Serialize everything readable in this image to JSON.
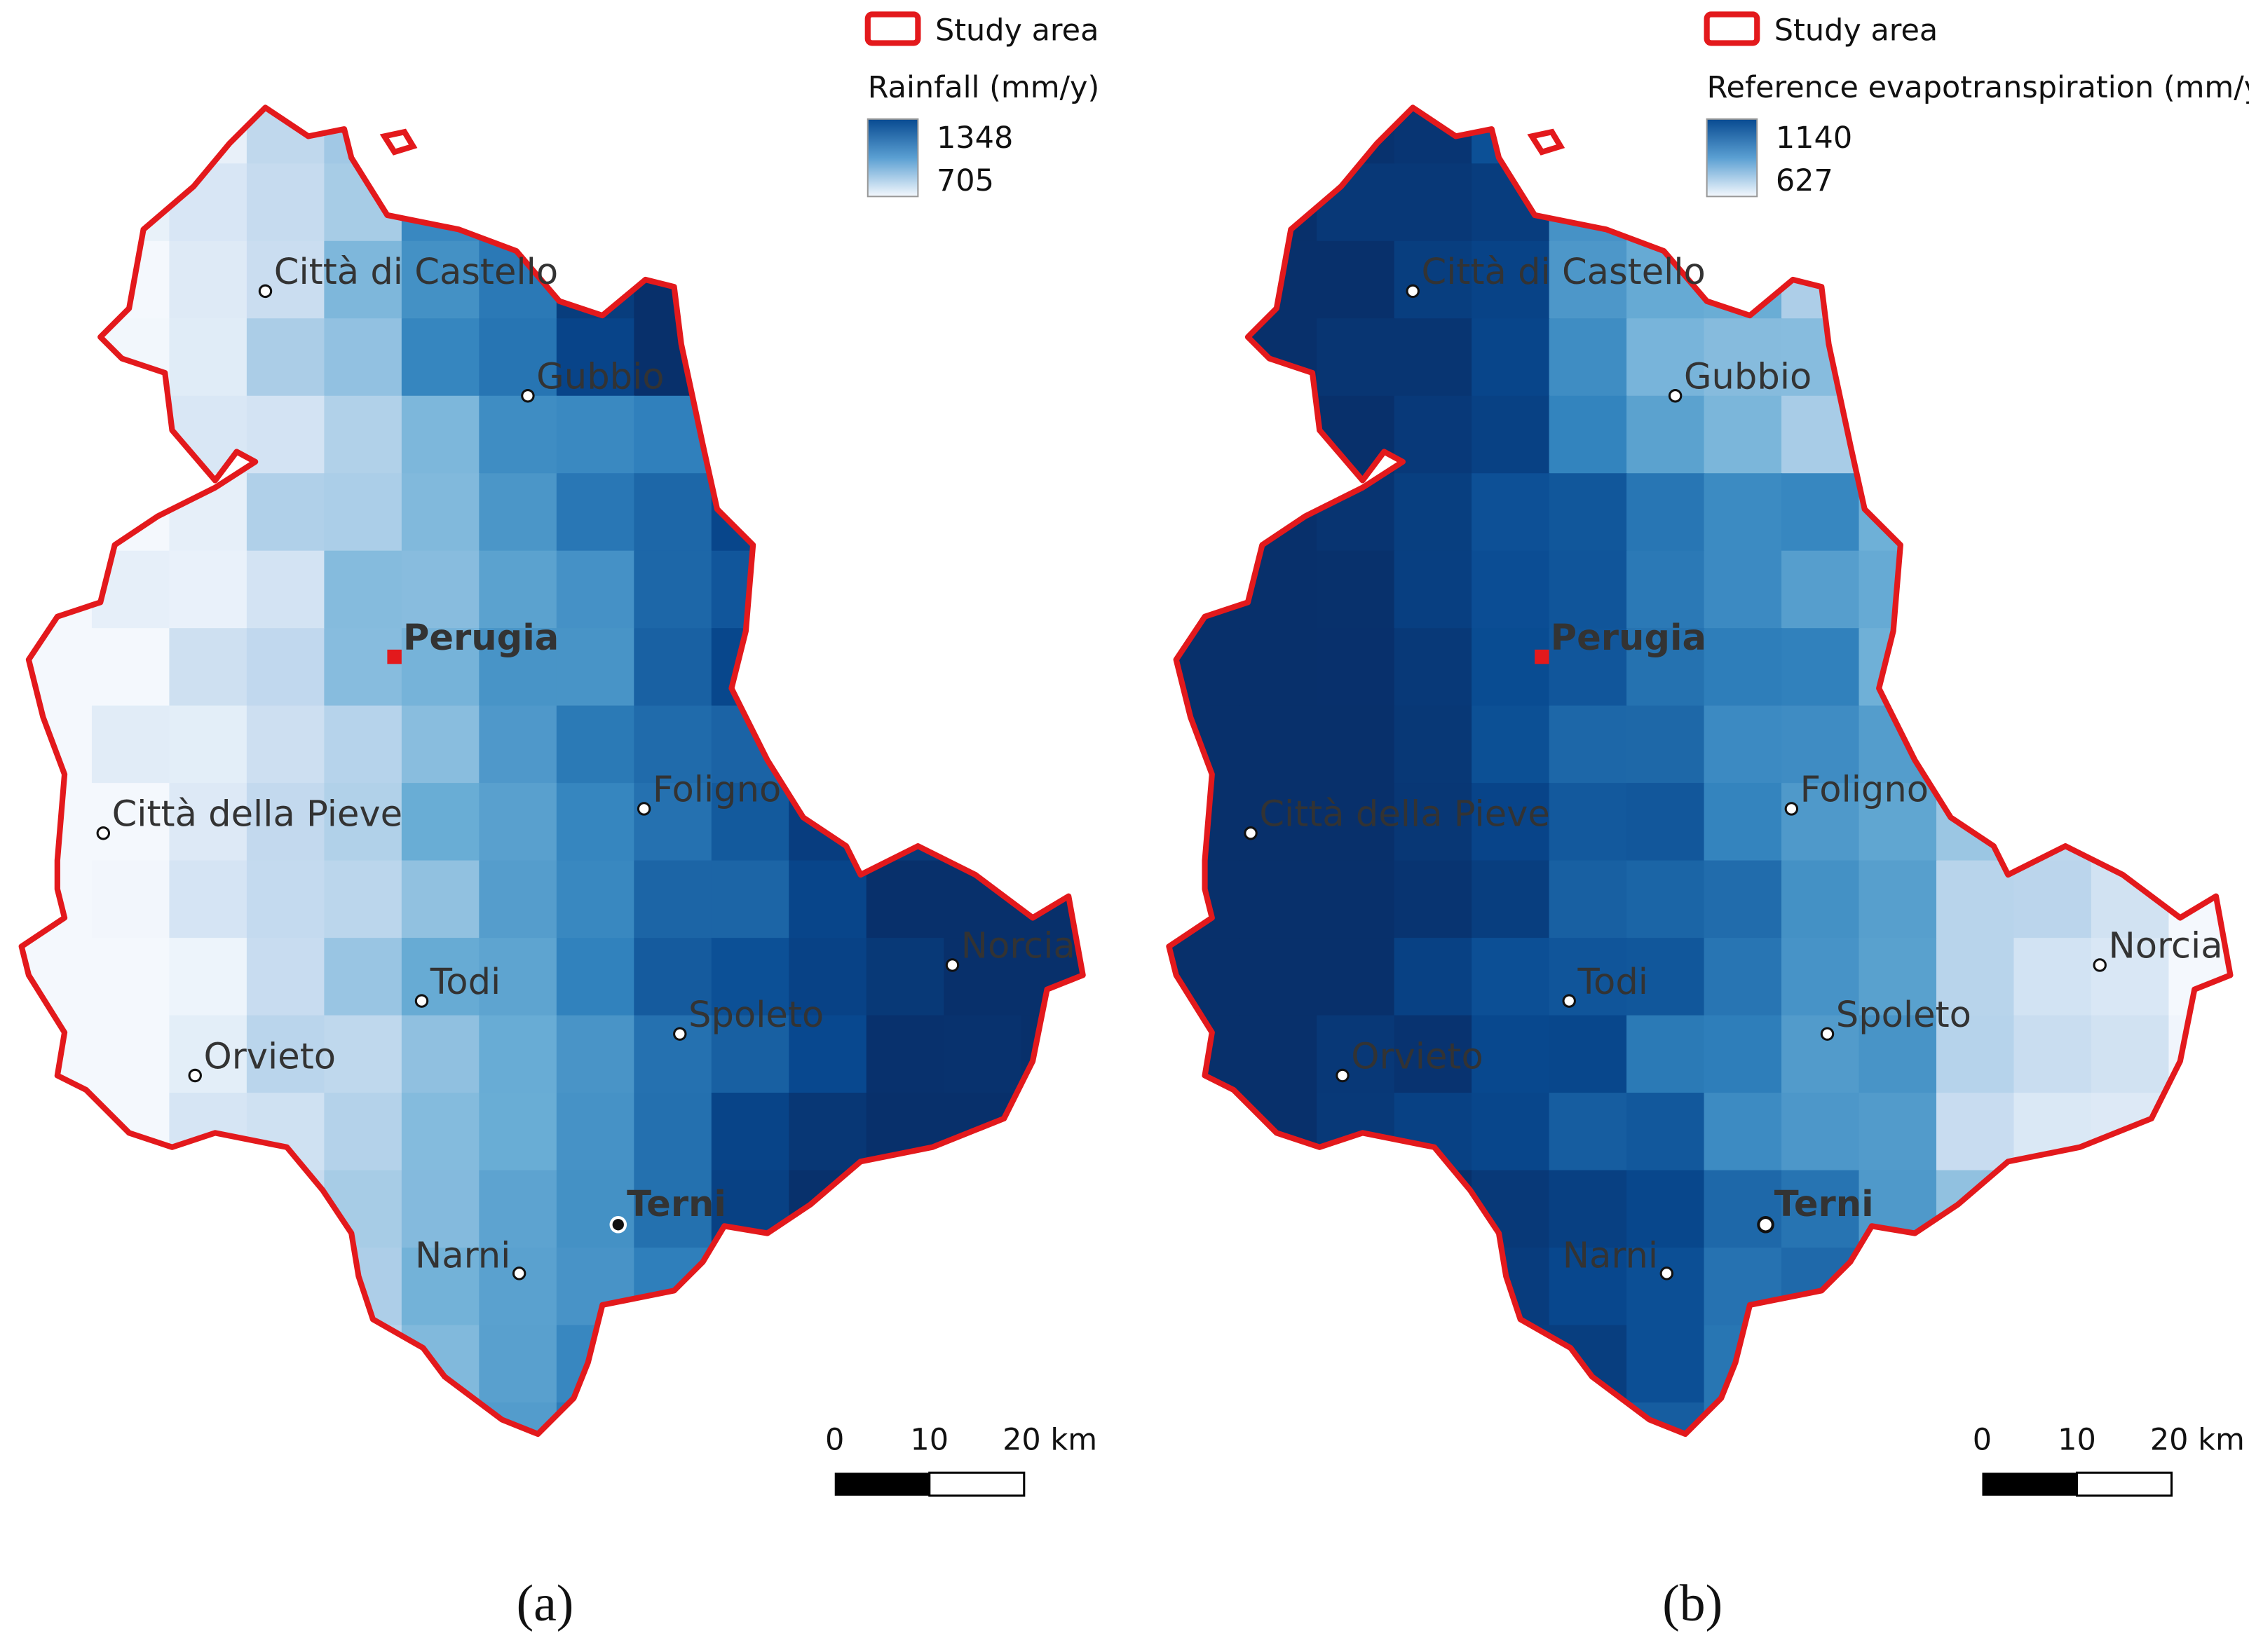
{
  "panels": [
    {
      "id": "a",
      "caption": "(a)",
      "legend": {
        "boundary_label": "Study area",
        "variable_title": "Rainfall (mm/y)",
        "max_value": "1348",
        "min_value": "705"
      },
      "scale_bar": {
        "ticks": [
          "0",
          "10",
          "20 km"
        ]
      },
      "pattern": "rainfall"
    },
    {
      "id": "b",
      "caption": "(b)",
      "legend": {
        "boundary_label": "Study area",
        "variable_title": "Reference evapotranspiration (mm/y)",
        "max_value": "1140",
        "min_value": "627"
      },
      "scale_bar": {
        "ticks": [
          "0",
          "10",
          "20 km"
        ]
      },
      "pattern": "et0"
    }
  ],
  "cities": [
    {
      "name": "Città di Castello",
      "bold": false
    },
    {
      "name": "Gubbio",
      "bold": false
    },
    {
      "name": "Perugia",
      "bold": true,
      "capital": true
    },
    {
      "name": "Foligno",
      "bold": false
    },
    {
      "name": "Città della Pieve",
      "bold": false
    },
    {
      "name": "Todi",
      "bold": false
    },
    {
      "name": "Spoleto",
      "bold": false
    },
    {
      "name": "Norcia",
      "bold": false
    },
    {
      "name": "Orvieto",
      "bold": false
    },
    {
      "name": "Terni",
      "bold": true
    },
    {
      "name": "Narni",
      "bold": false
    }
  ],
  "colors": {
    "boundary": "#e3191c",
    "ramp_low": "#f4f8fd",
    "ramp_high": "#083b80"
  }
}
